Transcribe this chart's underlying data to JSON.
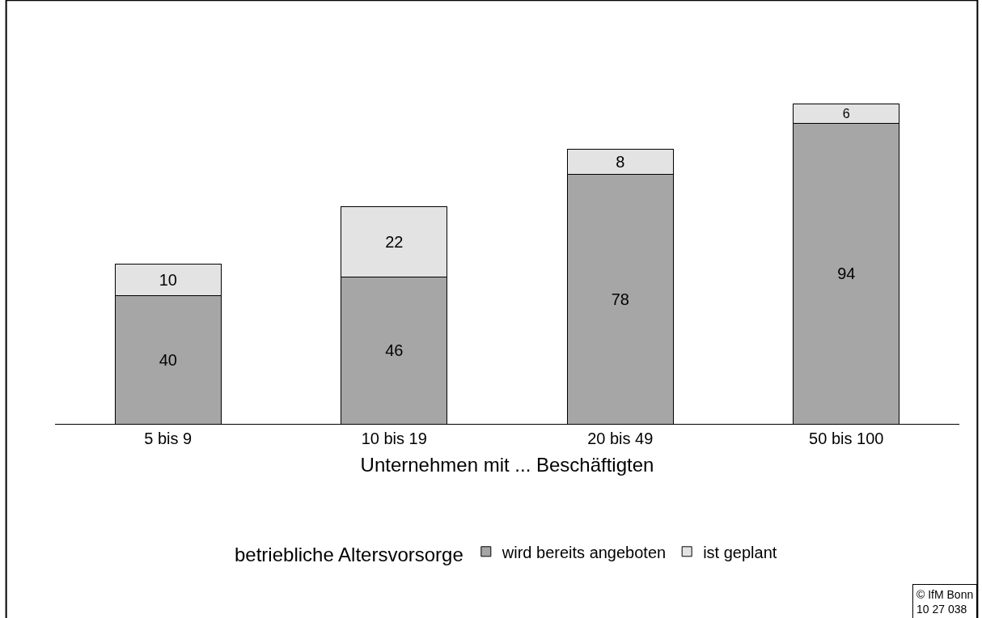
{
  "chart_data": {
    "type": "bar",
    "stacked": true,
    "xlabel": "Unternehmen mit ... Beschäftigten",
    "legend_title": "betriebliche Altersvorsorge",
    "legend": "bottom",
    "data_labels": true,
    "categories": [
      "5 bis 9",
      "10 bis 19",
      "20 bis 49",
      "50 bis 100"
    ],
    "series": [
      {
        "name": "wird bereits angeboten",
        "color": "#a6a6a6",
        "values": [
          40,
          46,
          78,
          94
        ]
      },
      {
        "name": "ist geplant",
        "color": "#e3e3e3",
        "values": [
          10,
          22,
          8,
          6
        ]
      }
    ],
    "annotations": [
      "© IfM Bonn\n10 27 038"
    ]
  }
}
